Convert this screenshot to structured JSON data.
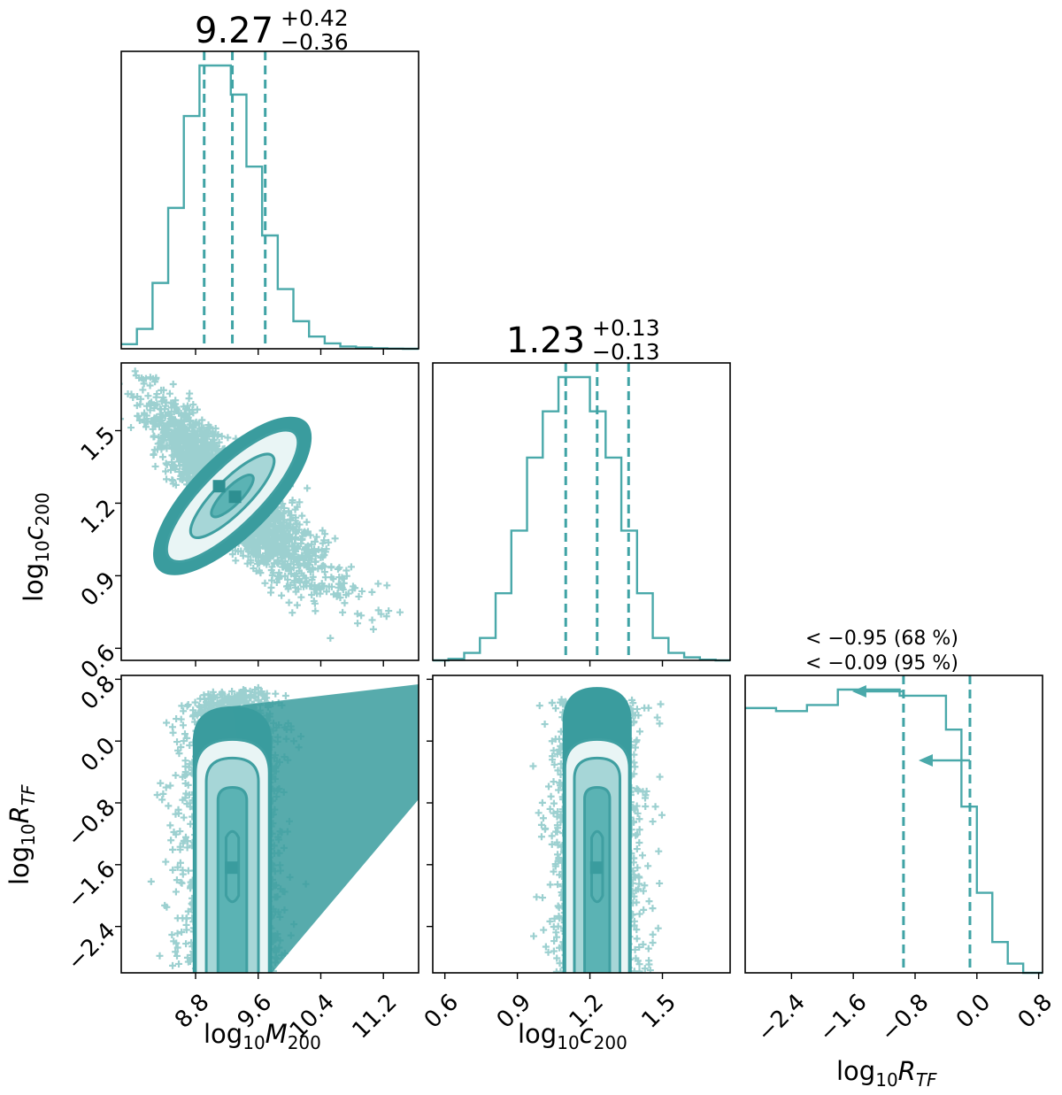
{
  "colors": {
    "accent": "#4aa9aa",
    "dense": "#3a9c9e",
    "light_fill": "#e9f5f5",
    "mid_fill": "#a6d6d7",
    "dark_fill": "#5bb3b4"
  },
  "chart_data": {
    "type": "corner",
    "parameters": [
      {
        "key": "m200",
        "label_base": "log",
        "label_base_sub": "10",
        "label_var": "M",
        "label_var_sub": "200",
        "range": [
          7.85,
          11.65
        ],
        "ticks": [
          "8.8",
          "9.6",
          "10.4",
          "11.2"
        ],
        "tick_values": [
          8.8,
          9.6,
          10.4,
          11.2
        ]
      },
      {
        "key": "c200",
        "label_base": "log",
        "label_base_sub": "10",
        "label_var": "c",
        "label_var_sub": "200",
        "range": [
          0.55,
          1.78
        ],
        "ticks": [
          "0.6",
          "0.9",
          "1.2",
          "1.5"
        ],
        "tick_values": [
          0.6,
          0.9,
          1.2,
          1.5
        ]
      },
      {
        "key": "rtf",
        "label_base": "log",
        "label_base_sub": "10",
        "label_var": "R",
        "label_var_sub": "TF",
        "range": [
          -3.0,
          0.85
        ],
        "ticks": [
          "−2.4",
          "−1.6",
          "−0.8",
          "0.0",
          "0.8"
        ],
        "tick_values": [
          -2.4,
          -1.6,
          -0.8,
          0.0,
          0.8
        ]
      }
    ],
    "diagonal_titles": [
      {
        "value": "9.27",
        "plus": "+0.42",
        "minus": "−0.36"
      },
      {
        "value": "1.23",
        "plus": "+0.13",
        "minus": "−0.13"
      },
      {
        "line1": "< −0.95 (68 %)",
        "line2": "< −0.09 (95 %)"
      }
    ],
    "histograms": {
      "m200": {
        "edges": [
          7.85,
          8.05,
          8.25,
          8.45,
          8.65,
          8.85,
          9.05,
          9.25,
          9.45,
          9.65,
          9.85,
          10.05,
          10.25,
          10.45,
          10.65,
          10.85,
          11.05,
          11.25,
          11.45,
          11.65
        ],
        "counts": [
          0.3,
          1.3,
          4.3,
          9.2,
          15.2,
          18.5,
          18.5,
          16.6,
          11.9,
          7.4,
          3.9,
          1.8,
          0.8,
          0.35,
          0.15,
          0.08,
          0.03,
          0.01,
          0.0
        ],
        "quantiles": [
          8.91,
          9.27,
          9.69
        ]
      },
      "c200": {
        "edges": [
          0.55,
          0.615,
          0.68,
          0.745,
          0.81,
          0.875,
          0.94,
          1.005,
          1.07,
          1.135,
          1.2,
          1.265,
          1.33,
          1.395,
          1.46,
          1.525,
          1.59,
          1.655,
          1.72,
          1.78
        ],
        "counts": [
          0.0,
          0.1,
          0.5,
          1.5,
          4.5,
          8.7,
          13.6,
          16.7,
          19.0,
          19.0,
          16.7,
          13.6,
          8.7,
          4.5,
          1.5,
          0.5,
          0.2,
          0.05,
          0.0
        ],
        "quantiles": [
          1.1,
          1.23,
          1.36
        ]
      },
      "rtf": {
        "edges": [
          -3.0,
          -2.6,
          -2.2,
          -1.8,
          -1.4,
          -1.0,
          -0.6,
          -0.4,
          -0.2,
          0.0,
          0.2,
          0.4,
          0.6,
          0.85
        ],
        "counts": [
          8.6,
          8.5,
          8.7,
          9.2,
          9.2,
          9.0,
          9.0,
          7.9,
          5.4,
          2.6,
          1.0,
          0.3,
          0.0
        ],
        "quantiles": [
          -0.95,
          -0.09
        ]
      }
    },
    "credible_regions": {
      "m200_c200": {
        "center": [
          9.27,
          1.23
        ],
        "extent": [
          0.5,
          0.12
        ],
        "angle_deg": -45,
        "sigma_levels": [
          0.5,
          1.0,
          1.5
        ]
      },
      "m200_rtf": {
        "center": [
          9.27,
          -1.4
        ],
        "x_range": [
          8.7,
          9.9
        ],
        "y_range": [
          -3.0,
          0.0
        ],
        "sigma_levels": [
          0.5,
          1.0,
          1.5
        ]
      },
      "c200_rtf": {
        "center": [
          1.23,
          -1.4
        ],
        "x_range": [
          1.08,
          1.42
        ],
        "y_range": [
          -3.0,
          0.0
        ],
        "sigma_levels": [
          0.5,
          1.0,
          1.5
        ]
      }
    }
  }
}
